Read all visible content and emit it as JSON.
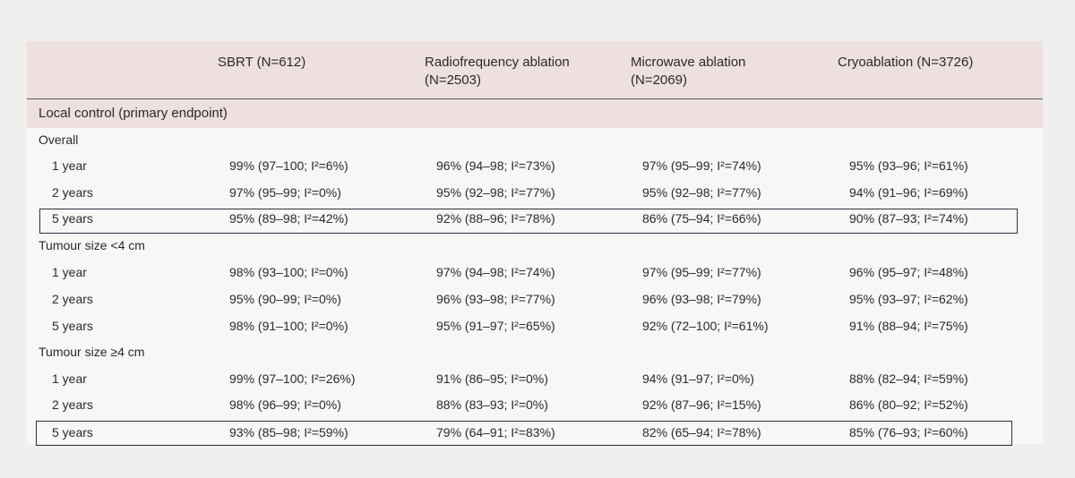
{
  "table": {
    "columns": [
      {
        "line1": "SBRT (N=612)",
        "line2": ""
      },
      {
        "line1": "Radiofrequency ablation",
        "line2": "(N=2503)"
      },
      {
        "line1": "Microwave ablation",
        "line2": "(N=2069)"
      },
      {
        "line1": "Cryoablation (N=3726)",
        "line2": ""
      }
    ],
    "section": "Local control (primary endpoint)",
    "groups": [
      {
        "label": "Overall",
        "rows": [
          {
            "label": "1 year",
            "cells": [
              "99% (97–100; I²=6%)",
              "96% (94–98; I²=73%)",
              "97% (95–99; I²=74%)",
              "95% (93–96; I²=61%)"
            ]
          },
          {
            "label": "2 years",
            "cells": [
              "97% (95–99; I²=0%)",
              "95% (92–98; I²=77%)",
              "95% (92–98; I²=77%)",
              "94% (91–96; I²=69%)"
            ]
          },
          {
            "label": "5 years",
            "cells": [
              "95% (89–98; I²=42%)",
              "92% (88–96; I²=78%)",
              "86% (75–94; I²=66%)",
              "90% (87–93; I²=74%)"
            ]
          }
        ]
      },
      {
        "label": "Tumour size <4 cm",
        "rows": [
          {
            "label": "1 year",
            "cells": [
              "98% (93–100; I²=0%)",
              "97% (94–98; I²=74%)",
              "97% (95–99; I²=77%)",
              "96% (95–97; I²=48%)"
            ]
          },
          {
            "label": "2 years",
            "cells": [
              "95% (90–99; I²=0%)",
              "96% (93–98; I²=77%)",
              "96% (93–98; I²=79%)",
              "95% (93–97; I²=62%)"
            ]
          },
          {
            "label": "5 years",
            "cells": [
              "98% (91–100; I²=0%)",
              "95% (91–97; I²=65%)",
              "92% (72–100; I²=61%)",
              "91% (88–94; I²=75%)"
            ]
          }
        ]
      },
      {
        "label": "Tumour size ≥4 cm",
        "rows": [
          {
            "label": "1 year",
            "cells": [
              "99% (97–100; I²=26%)",
              "91% (86–95; I²=0%)",
              "94% (91–97; I²=0%)",
              "88% (82–94; I²=59%)"
            ]
          },
          {
            "label": "2 years",
            "cells": [
              "98% (96–99; I²=0%)",
              "88% (83–93; I²=0%)",
              "92% (87–96; I²=15%)",
              "86% (80–92; I²=52%)"
            ]
          },
          {
            "label": "5 years",
            "cells": [
              "93% (85–98; I²=59%)",
              "79% (64–91; I²=83%)",
              "82% (65–94; I²=78%)",
              "85% (76–93; I²=60%)"
            ]
          }
        ]
      }
    ]
  }
}
